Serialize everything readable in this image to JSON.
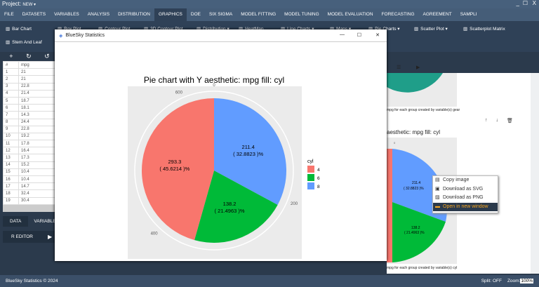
{
  "topbar": {
    "project_label": "Project:",
    "project_value": "NEW ▾",
    "minimize": "_",
    "maximize": "☐",
    "close": "X"
  },
  "menu": [
    "FILE",
    "DATASETS",
    "VARIABLES",
    "ANALYSIS",
    "DISTRIBUTION",
    "GRAPHICS",
    "DOE",
    "SIX SIGMA",
    "MODEL FITTING",
    "MODEL TUNING",
    "MODEL EVALUATION",
    "FORECASTING",
    "AGREEMENT",
    "SAMPLI"
  ],
  "toolbar": [
    "Bar Chart",
    "Box Plot",
    "Contour Plot",
    "3D Contour Plot",
    "Distribution ▾",
    "HeatMap",
    "Line Charts ▾",
    "Maps ▾",
    "Pie Charts ▾",
    "Scatter Plot ▾",
    "Scatterplot Matrix",
    "Stem And Leaf"
  ],
  "grid": {
    "headers": [
      "#",
      "mpg"
    ],
    "rows": [
      [
        "1",
        "21"
      ],
      [
        "2",
        "21"
      ],
      [
        "3",
        "22.8"
      ],
      [
        "4",
        "21.4"
      ],
      [
        "5",
        "18.7"
      ],
      [
        "6",
        "18.1"
      ],
      [
        "7",
        "14.3"
      ],
      [
        "8",
        "24.4"
      ],
      [
        "9",
        "22.8"
      ],
      [
        "10",
        "19.2"
      ],
      [
        "11",
        "17.8"
      ],
      [
        "12",
        "16.4"
      ],
      [
        "13",
        "17.3"
      ],
      [
        "14",
        "15.2"
      ],
      [
        "15",
        "10.4"
      ],
      [
        "16",
        "10.4"
      ],
      [
        "17",
        "14.7"
      ],
      [
        "18",
        "32.4"
      ],
      [
        "19",
        "30.4"
      ]
    ]
  },
  "left_tabs": {
    "data": "DATA",
    "variables": "VARIABLES",
    "r_editor": "R EDITOR"
  },
  "popup": {
    "title": "BlueSky Statistics",
    "minimize": "—",
    "maximize": "☐",
    "close": "✕"
  },
  "chart_data": {
    "type": "pie",
    "title": "Pie chart with Y aesthetic: mpg fill: cyl",
    "caption": "Each pie represents the total of variable mpg for each group created by variable(s) cyl",
    "legend_title": "cyl",
    "legend_position": "right",
    "slices": [
      {
        "name": "8",
        "value": 211.4,
        "label": "211.4",
        "pct": "( 32.8823 )%",
        "color": "#619cff"
      },
      {
        "name": "6",
        "value": 138.2,
        "label": "138.2",
        "pct": "( 21.4963 )%",
        "color": "#00ba38"
      },
      {
        "name": "4",
        "value": 293.3,
        "label": "293.3",
        "pct": "( 45.6214 )%",
        "color": "#f8766d"
      }
    ],
    "ticks": [
      0,
      200,
      400,
      600
    ],
    "legend_order": [
      "4",
      "6",
      "8"
    ]
  },
  "right": {
    "caption1": "mpg for each group created by variable(s) gear",
    "title2": "aesthetic: mpg fill: cyl",
    "caption2": "mpg for each group created by variable(s) cyl",
    "l1": "211.4",
    "p1": "( 32.8823 )%",
    "l2": "138.2",
    "p2": "( 21.4963 )%",
    "t0": "0",
    "t200": "200"
  },
  "context_menu": [
    "Copy image",
    "Download as SVG",
    "Download as PNG",
    "Open in new window"
  ],
  "status": {
    "copyright": "BlueSky Statistics © 2024",
    "split": "Split: OFF",
    "zoom_label": "Zoom:",
    "zoom_value": "100%"
  }
}
